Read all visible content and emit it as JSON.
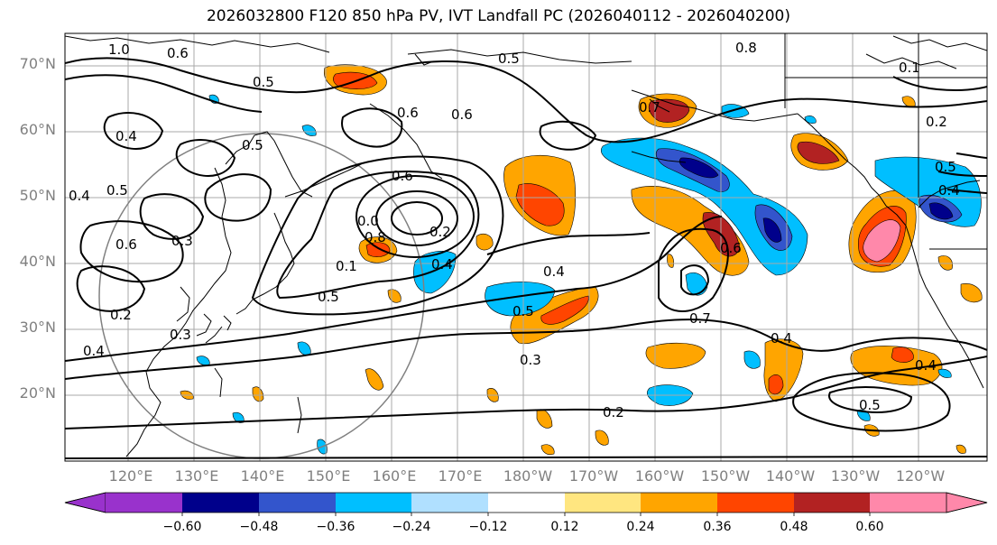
{
  "title": "2026032800 F120 850 hPa PV, IVT Landfall PC (2026040112 - 2026040200)",
  "lat_labels": [
    "70°N",
    "60°N",
    "50°N",
    "40°N",
    "30°N",
    "20°N"
  ],
  "lon_labels": [
    "120°E",
    "130°E",
    "140°E",
    "150°E",
    "160°E",
    "170°E",
    "180°W",
    "170°W",
    "160°W",
    "150°W",
    "140°W",
    "130°W",
    "120°W"
  ],
  "colorbar": {
    "ticks": [
      "−0.60",
      "−0.48",
      "−0.36",
      "−0.24",
      "−0.12",
      "0.12",
      "0.24",
      "0.36",
      "0.48",
      "0.60"
    ],
    "colors": [
      "#9932cc",
      "#00008b",
      "#3355cc",
      "#00bfff",
      "#b0e0ff",
      "#ffffff",
      "#ffe680",
      "#ffa500",
      "#ff4500",
      "#b22222",
      "#ff88aa"
    ]
  },
  "contour_labels": [
    "1.0",
    "0.8",
    "0.5",
    "0.5",
    "0.6",
    "0.5",
    "0.4",
    "0.5",
    "0.4",
    "0.6",
    "0.3",
    "0.2",
    "0.4",
    "0.3",
    "0.6",
    "0.0",
    "0.8",
    "0.2",
    "0.1",
    "0.5",
    "0.4",
    "0.6",
    "0.4",
    "0.7",
    "0.5",
    "0.3",
    "0.4",
    "0.2",
    "0.5",
    "0.4",
    "0.6",
    "0.7",
    "0.1",
    "0.2",
    "0.5",
    "0.4",
    "0.6"
  ]
}
